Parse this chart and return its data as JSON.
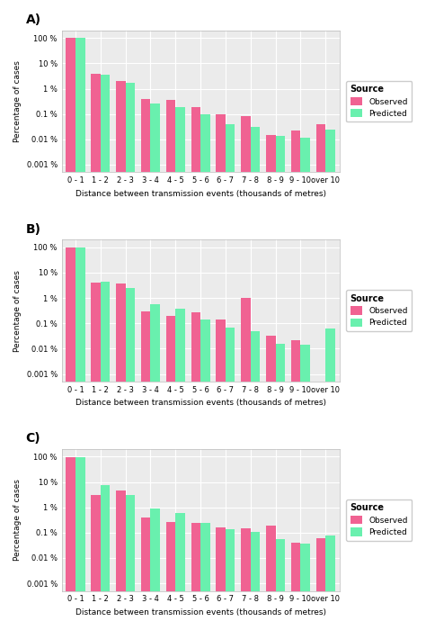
{
  "categories": [
    "0 - 1",
    "1 - 2",
    "2 - 3",
    "3 - 4",
    "4 - 5",
    "5 - 6",
    "6 - 7",
    "7 - 8",
    "8 - 9",
    "9 - 10",
    "over 10"
  ],
  "panels": [
    {
      "label": "A)",
      "observed": [
        99,
        4.0,
        2.0,
        0.38,
        0.35,
        0.18,
        0.1,
        0.085,
        0.015,
        0.022,
        0.04
      ],
      "predicted": [
        99,
        3.7,
        1.7,
        0.26,
        0.19,
        0.095,
        0.04,
        0.032,
        0.014,
        0.012,
        0.025
      ]
    },
    {
      "label": "B)",
      "observed": [
        99,
        4.2,
        3.8,
        0.3,
        0.2,
        0.28,
        0.14,
        1.05,
        0.033,
        0.022,
        0.0001
      ],
      "predicted": [
        99,
        4.5,
        2.5,
        0.55,
        0.38,
        0.14,
        0.07,
        0.05,
        0.016,
        0.014,
        0.065
      ]
    },
    {
      "label": "C)",
      "observed": [
        99,
        3.0,
        4.5,
        0.4,
        0.26,
        0.24,
        0.155,
        0.15,
        0.19,
        0.04,
        0.06
      ],
      "predicted": [
        99,
        7.5,
        3.0,
        0.9,
        0.58,
        0.24,
        0.135,
        0.105,
        0.055,
        0.038,
        0.075
      ]
    }
  ],
  "observed_color": "#F06292",
  "predicted_color": "#69F0AE",
  "xlabel": "Distance between transmission events (thousands of metres)",
  "ylabel": "Percentage of cases",
  "ylim_min": 0.001,
  "ylim_max": 200,
  "yticks": [
    0.001,
    0.01,
    0.1,
    1,
    10,
    100
  ],
  "ytick_labels": [
    "0.001 %",
    "0.01 %",
    "0.1 %",
    "1 %",
    "10 %",
    "100 %"
  ],
  "bg_color": "#EBEBEB",
  "grid_color": "white",
  "legend_source": "Source",
  "legend_observed": "Observed",
  "legend_predicted": "Predicted"
}
